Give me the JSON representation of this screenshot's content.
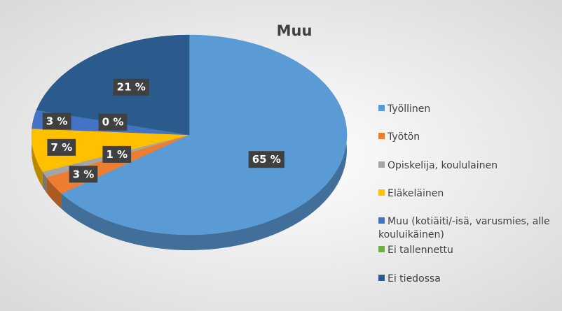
{
  "chart_data": {
    "type": "pie",
    "title": "Muu",
    "categories": [
      "Työllinen",
      "Työtön",
      "Opiskelija, koululainen",
      "Eläkeläinen",
      "Muu (kotiäiti/-isä, varusmies, alle kouluikäinen)",
      "Ei tallennettu",
      "Ei tiedossa"
    ],
    "values": [
      65,
      3,
      1,
      7,
      3,
      0,
      21
    ],
    "value_labels": [
      "65 %",
      "3 %",
      "1 %",
      "7 %",
      "3 %",
      "0 %",
      "21 %"
    ],
    "colors": [
      "#5b9bd5",
      "#ed7d31",
      "#a5a5a5",
      "#ffc000",
      "#4472c4",
      "#70ad47",
      "#2a5b8c"
    ],
    "legend": "right"
  }
}
